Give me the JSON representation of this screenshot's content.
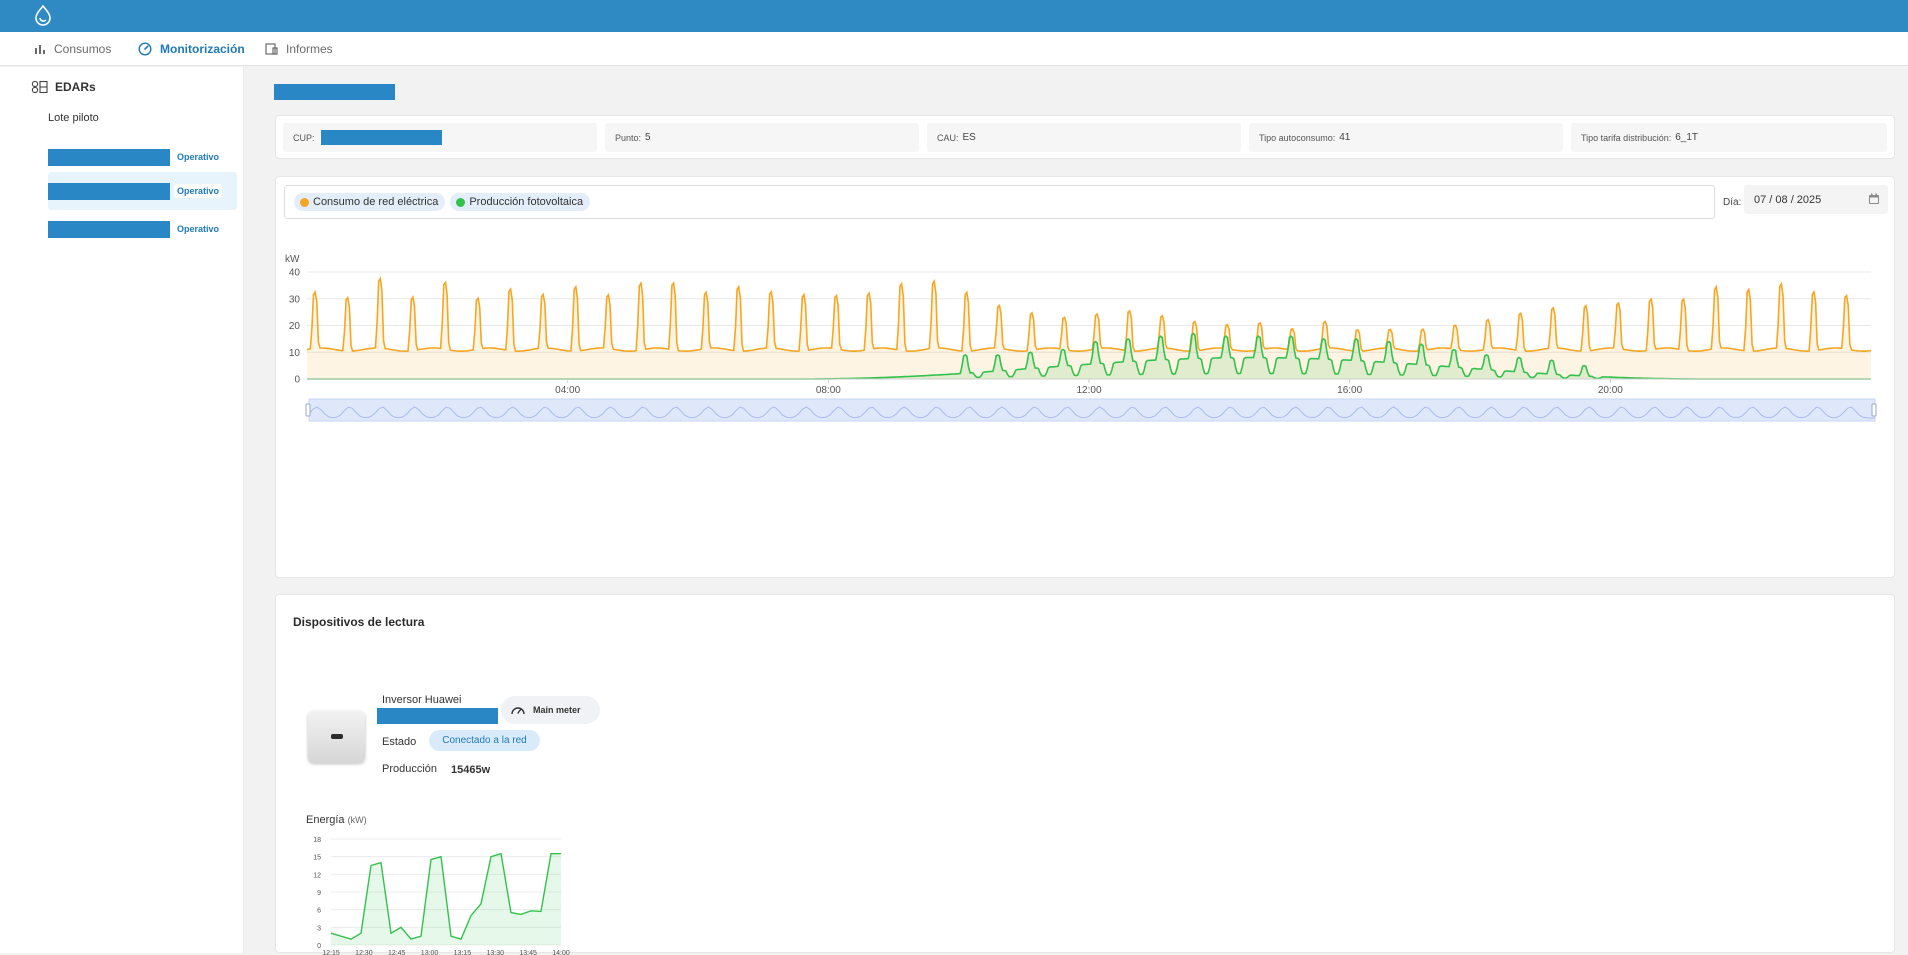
{
  "nav": {
    "items": [
      {
        "label": "Consumos",
        "active": false
      },
      {
        "label": "Monitorización",
        "active": true
      },
      {
        "label": "Informes",
        "active": false
      }
    ]
  },
  "sidebar": {
    "section": "EDARs",
    "group": "Lote piloto",
    "plants": [
      {
        "status": "Operativo",
        "selected": false
      },
      {
        "status": "Operativo",
        "selected": true
      },
      {
        "status": "Operativo",
        "selected": false
      }
    ]
  },
  "info": {
    "cup_label": "CUP:",
    "punto_label": "Punto:",
    "punto_value": "5",
    "cau_label": "CAU:",
    "cau_value": "ES",
    "autoconsumo_label": "Tipo autoconsumo:",
    "autoconsumo_value": "41",
    "tarifa_label": "Tipo tarifa distribución:",
    "tarifa_value": "6_1T"
  },
  "filters": {
    "chips": [
      {
        "label": "Consumo de red eléctrica",
        "color": "#f5a623"
      },
      {
        "label": "Producción fotovoltaica",
        "color": "#33c24d"
      }
    ],
    "date_label": "Día:",
    "date_value": "07 / 08 / 2025"
  },
  "chart_data": {
    "type": "area",
    "ylabel": "kW",
    "ylim": [
      0,
      40
    ],
    "yticks": [
      0,
      10,
      20,
      30,
      40
    ],
    "xlim_hours": [
      0,
      24
    ],
    "xticks": [
      "04:00",
      "08:00",
      "12:00",
      "16:00",
      "20:00"
    ],
    "grid": true,
    "colors": {
      "grid_consumption": "#f5a623",
      "pv_production": "#33c24d"
    },
    "series": [
      {
        "name": "Consumo de red eléctrica",
        "baseline_kw": 11,
        "pulses": [
          {
            "t": 0.0,
            "peak": 32
          },
          {
            "t": 0.5,
            "peak": 31
          },
          {
            "t": 1.0,
            "peak": 37
          },
          {
            "t": 1.5,
            "peak": 31
          },
          {
            "t": 2.0,
            "peak": 36
          },
          {
            "t": 2.5,
            "peak": 30
          },
          {
            "t": 3.0,
            "peak": 34
          },
          {
            "t": 3.5,
            "peak": 31
          },
          {
            "t": 4.0,
            "peak": 35
          },
          {
            "t": 4.5,
            "peak": 31
          },
          {
            "t": 5.0,
            "peak": 36
          },
          {
            "t": 5.5,
            "peak": 36
          },
          {
            "t": 6.0,
            "peak": 32
          },
          {
            "t": 6.5,
            "peak": 35
          },
          {
            "t": 7.0,
            "peak": 32
          },
          {
            "t": 7.5,
            "peak": 32
          },
          {
            "t": 8.0,
            "peak": 31
          },
          {
            "t": 8.5,
            "peak": 32
          },
          {
            "t": 9.0,
            "peak": 36
          },
          {
            "t": 9.5,
            "peak": 36
          },
          {
            "t": 10.0,
            "peak": 33
          },
          {
            "t": 10.5,
            "peak": 27
          },
          {
            "t": 11.0,
            "peak": 25
          },
          {
            "t": 11.5,
            "peak": 23
          },
          {
            "t": 12.0,
            "peak": 24
          },
          {
            "t": 12.5,
            "peak": 26
          },
          {
            "t": 13.0,
            "peak": 23
          },
          {
            "t": 13.5,
            "peak": 22
          },
          {
            "t": 14.0,
            "peak": 20
          },
          {
            "t": 14.5,
            "peak": 21
          },
          {
            "t": 15.0,
            "peak": 19
          },
          {
            "t": 15.5,
            "peak": 21
          },
          {
            "t": 16.0,
            "peak": 19
          },
          {
            "t": 16.5,
            "peak": 18
          },
          {
            "t": 17.0,
            "peak": 19
          },
          {
            "t": 17.5,
            "peak": 20
          },
          {
            "t": 18.0,
            "peak": 22
          },
          {
            "t": 18.5,
            "peak": 25
          },
          {
            "t": 19.0,
            "peak": 26
          },
          {
            "t": 19.5,
            "peak": 28
          },
          {
            "t": 20.0,
            "peak": 28
          },
          {
            "t": 20.5,
            "peak": 30
          },
          {
            "t": 21.0,
            "peak": 30
          },
          {
            "t": 21.5,
            "peak": 34
          },
          {
            "t": 22.0,
            "peak": 34
          },
          {
            "t": 22.5,
            "peak": 35
          },
          {
            "t": 23.0,
            "peak": 33
          },
          {
            "t": 23.5,
            "peak": 31
          }
        ]
      },
      {
        "name": "Producción fotovoltaica",
        "daylight_hours": [
          7.5,
          21.5
        ],
        "peak_smooth_kw": 8,
        "pulses": [
          {
            "t": 10.0,
            "peak": 9
          },
          {
            "t": 10.5,
            "peak": 9
          },
          {
            "t": 11.0,
            "peak": 10
          },
          {
            "t": 11.5,
            "peak": 11
          },
          {
            "t": 12.0,
            "peak": 14
          },
          {
            "t": 12.5,
            "peak": 15
          },
          {
            "t": 13.0,
            "peak": 16
          },
          {
            "t": 13.5,
            "peak": 17
          },
          {
            "t": 14.0,
            "peak": 16
          },
          {
            "t": 14.5,
            "peak": 16
          },
          {
            "t": 15.0,
            "peak": 16
          },
          {
            "t": 15.5,
            "peak": 15
          },
          {
            "t": 16.0,
            "peak": 15
          },
          {
            "t": 16.5,
            "peak": 14
          },
          {
            "t": 17.0,
            "peak": 13
          },
          {
            "t": 17.5,
            "peak": 11
          },
          {
            "t": 18.0,
            "peak": 9
          },
          {
            "t": 18.5,
            "peak": 8
          },
          {
            "t": 19.0,
            "peak": 7
          },
          {
            "t": 19.5,
            "peak": 5
          }
        ]
      }
    ]
  },
  "devices": {
    "title": "Dispositivos de lectura",
    "items": [
      {
        "name": "Inversor Huawei",
        "badge": "Main meter",
        "estado_label": "Estado",
        "estado_value": "Conectado a la red",
        "produccion_label": "Producción",
        "produccion_value": "15465w"
      }
    ]
  },
  "mini_chart": {
    "title": "Energía",
    "unit": "(kW)",
    "ylim": [
      0,
      18
    ],
    "yticks": [
      0,
      3,
      6,
      9,
      12,
      15,
      18
    ],
    "xticks": [
      "12:15",
      "12:30",
      "12:45",
      "13:00",
      "13:15",
      "13:30",
      "13:45",
      "14:00"
    ],
    "color": "#33c24d",
    "values": [
      2,
      1.5,
      1,
      2,
      13.5,
      14,
      2,
      3,
      1,
      1.5,
      14.5,
      15,
      1.5,
      1,
      5,
      7,
      15,
      15.5,
      5.5,
      5.2,
      5.8,
      5.7,
      15.5,
      15.5
    ]
  }
}
